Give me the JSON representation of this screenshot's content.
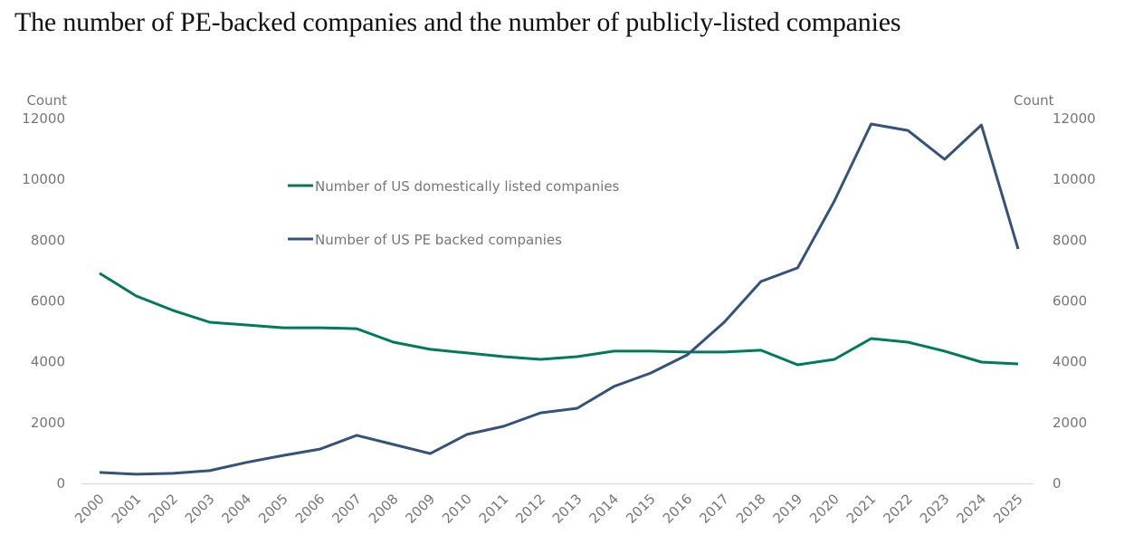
{
  "chart_data": {
    "type": "line",
    "title": "The number of PE-backed companies and the number of publicly-listed companies",
    "xlabel": "",
    "ylabel_left": "Count",
    "ylabel_right": "Count",
    "ylim": [
      0,
      12000
    ],
    "yticks": [
      0,
      2000,
      4000,
      6000,
      8000,
      10000,
      12000
    ],
    "grid": false,
    "legend_position": "upper-center",
    "x": [
      "2000",
      "2001",
      "2002",
      "2003",
      "2004",
      "2005",
      "2006",
      "2007",
      "2008",
      "2009",
      "2010",
      "2011",
      "2012",
      "2013",
      "2014",
      "2015",
      "2016",
      "2017",
      "2018",
      "2019",
      "2020",
      "2021",
      "2022",
      "2023",
      "2024",
      "2025"
    ],
    "series": [
      {
        "name": "Number of US domestically listed companies",
        "color": "#007a5e",
        "axis": "left",
        "values": [
          6910,
          6165,
          5690,
          5300,
          5210,
          5120,
          5120,
          5090,
          4645,
          4410,
          4290,
          4170,
          4080,
          4170,
          4350,
          4350,
          4320,
          4320,
          4380,
          3900,
          4080,
          4765,
          4645,
          4350,
          3990,
          3930
        ]
      },
      {
        "name": "Number of US PE backed companies",
        "color": "#34527a",
        "axis": "right",
        "values": [
          360,
          300,
          330,
          420,
          690,
          920,
          1130,
          1580,
          1280,
          980,
          1610,
          1880,
          2320,
          2470,
          3190,
          3630,
          4230,
          5300,
          6640,
          7090,
          9290,
          11820,
          11610,
          10660,
          11790,
          7710
        ]
      }
    ]
  }
}
